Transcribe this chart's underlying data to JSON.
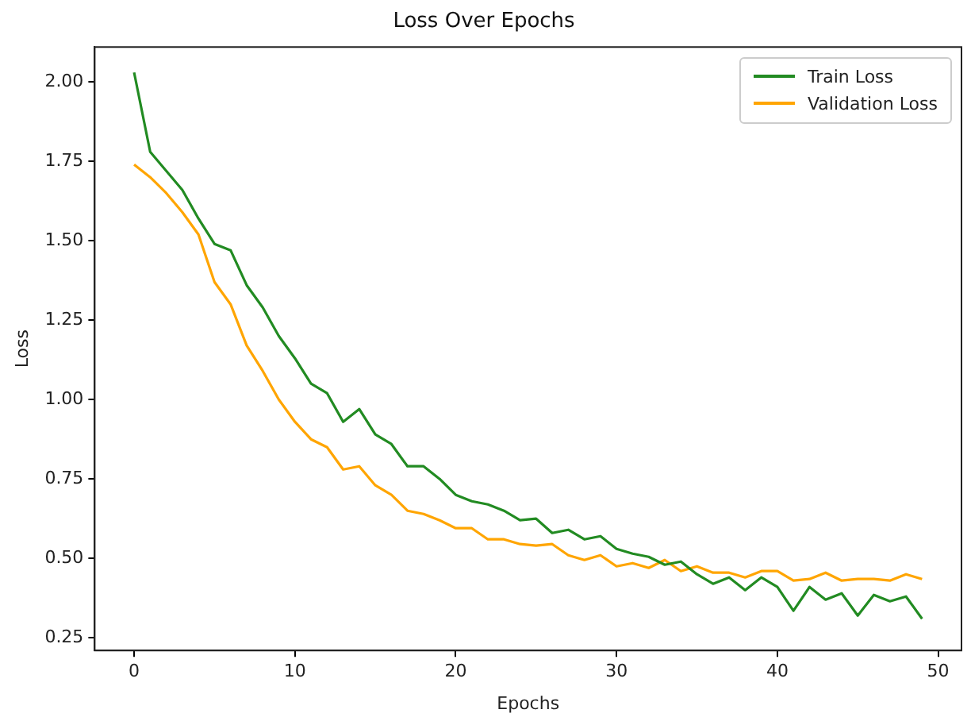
{
  "chart_data": {
    "type": "line",
    "title": "Loss Over Epochs",
    "xlabel": "Epochs",
    "ylabel": "Loss",
    "x": [
      0,
      1,
      2,
      3,
      4,
      5,
      6,
      7,
      8,
      9,
      10,
      11,
      12,
      13,
      14,
      15,
      16,
      17,
      18,
      19,
      20,
      21,
      22,
      23,
      24,
      25,
      26,
      27,
      28,
      29,
      30,
      31,
      32,
      33,
      34,
      35,
      36,
      37,
      38,
      39,
      40,
      41,
      42,
      43,
      44,
      45,
      46,
      47,
      48,
      49
    ],
    "series": [
      {
        "name": "Train Loss",
        "color": "#228b22",
        "values": [
          2.03,
          1.78,
          1.72,
          1.66,
          1.57,
          1.49,
          1.47,
          1.36,
          1.29,
          1.2,
          1.13,
          1.05,
          1.02,
          0.93,
          0.97,
          0.89,
          0.86,
          0.79,
          0.79,
          0.75,
          0.7,
          0.68,
          0.67,
          0.65,
          0.62,
          0.625,
          0.58,
          0.59,
          0.56,
          0.57,
          0.53,
          0.515,
          0.505,
          0.48,
          0.49,
          0.45,
          0.42,
          0.44,
          0.4,
          0.44,
          0.41,
          0.335,
          0.41,
          0.37,
          0.39,
          0.32,
          0.385,
          0.365,
          0.38,
          0.31
        ]
      },
      {
        "name": "Validation Loss",
        "color": "#ffa500",
        "values": [
          1.74,
          1.7,
          1.65,
          1.59,
          1.52,
          1.37,
          1.3,
          1.17,
          1.09,
          1.0,
          0.93,
          0.875,
          0.85,
          0.78,
          0.79,
          0.73,
          0.7,
          0.65,
          0.64,
          0.62,
          0.595,
          0.595,
          0.56,
          0.56,
          0.545,
          0.54,
          0.545,
          0.51,
          0.495,
          0.51,
          0.475,
          0.485,
          0.47,
          0.495,
          0.46,
          0.475,
          0.455,
          0.455,
          0.44,
          0.46,
          0.46,
          0.43,
          0.435,
          0.455,
          0.43,
          0.435,
          0.435,
          0.43,
          0.45,
          0.435
        ]
      }
    ],
    "xlim": [
      -2.45,
      51.45
    ],
    "xticks": [
      0,
      10,
      20,
      30,
      40,
      50
    ],
    "ylim": [
      0.21,
      2.11
    ],
    "yticks": [
      {
        "value": 0.25,
        "label": "0.25"
      },
      {
        "value": 0.5,
        "label": "0.50"
      },
      {
        "value": 0.75,
        "label": "0.75"
      },
      {
        "value": 1,
        "label": "1.00"
      },
      {
        "value": 1.25,
        "label": "1.25"
      },
      {
        "value": 1.5,
        "label": "1.50"
      },
      {
        "value": 1.75,
        "label": "1.75"
      },
      {
        "value": 2,
        "label": "2.00"
      }
    ],
    "legend": "top right",
    "grid": false,
    "marker": "none",
    "line_style": "solid"
  }
}
